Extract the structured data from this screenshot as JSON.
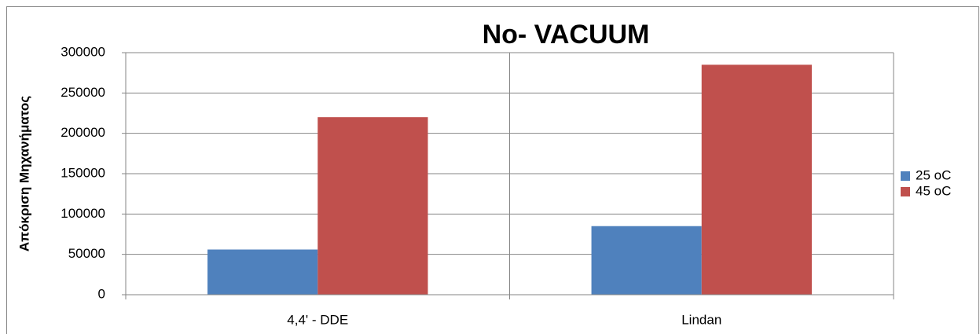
{
  "chart_data": {
    "type": "bar",
    "title": "No- VACUUM",
    "y_label": "Απόκριση Μηχανήματος",
    "categories": [
      "4,4' - DDE",
      "Lindan"
    ],
    "series": [
      {
        "name": "25 oC",
        "color": "#4f81bd",
        "values": [
          56000,
          85000
        ]
      },
      {
        "name": "45 oC",
        "color": "#c0504d",
        "values": [
          220000,
          285000
        ]
      }
    ],
    "ylim": [
      0,
      300000
    ],
    "yticks": [
      0,
      50000,
      100000,
      150000,
      200000,
      250000,
      300000
    ],
    "grid": true,
    "legend": "right"
  }
}
